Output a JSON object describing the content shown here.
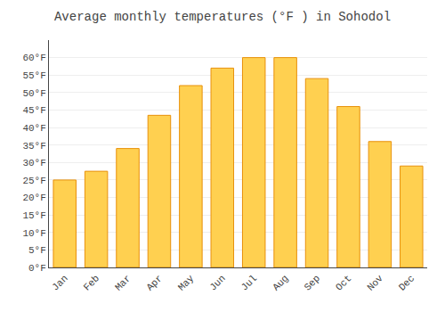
{
  "chart_data": {
    "type": "bar",
    "title": "Average monthly temperatures (°F ) in Sohodol",
    "categories": [
      "Jan",
      "Feb",
      "Mar",
      "Apr",
      "May",
      "Jun",
      "Jul",
      "Aug",
      "Sep",
      "Oct",
      "Nov",
      "Dec"
    ],
    "values": [
      25,
      27.5,
      34,
      43.5,
      52,
      57,
      60,
      60,
      54,
      46,
      36,
      29
    ],
    "color": "#FFD050",
    "ylim": [
      0,
      65
    ],
    "yticks": [
      {
        "value": 0,
        "label": "0°F"
      },
      {
        "value": 5,
        "label": "5°F"
      },
      {
        "value": 10,
        "label": "10°F"
      },
      {
        "value": 15,
        "label": "15°F"
      },
      {
        "value": 20,
        "label": "20°F"
      },
      {
        "value": 25,
        "label": "25°F"
      },
      {
        "value": 30,
        "label": "30°F"
      },
      {
        "value": 35,
        "label": "35°F"
      },
      {
        "value": 40,
        "label": "40°F"
      },
      {
        "value": 45,
        "label": "45°F"
      },
      {
        "value": 50,
        "label": "50°F"
      },
      {
        "value": 55,
        "label": "55°F"
      },
      {
        "value": 60,
        "label": "60°F"
      }
    ],
    "grid": true
  }
}
